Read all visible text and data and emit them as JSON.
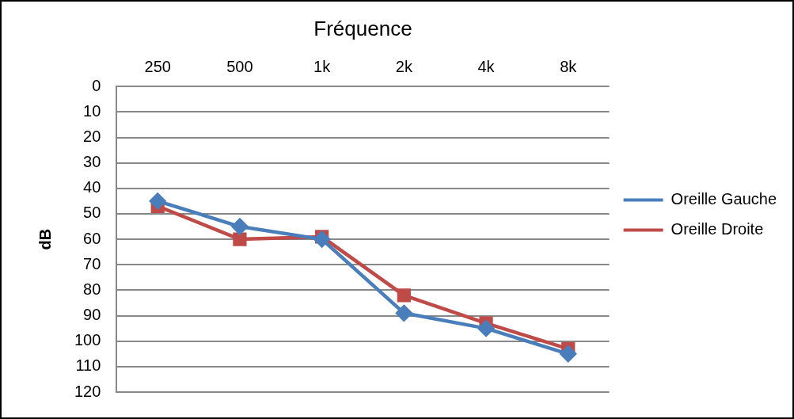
{
  "chart_data": {
    "type": "line",
    "xlabel": "Fréquence",
    "ylabel": "dB",
    "categories": [
      "250",
      "500",
      "1k",
      "2k",
      "4k",
      "8k"
    ],
    "series": [
      {
        "name": "Oreille Gauche",
        "color": "#4a7ebb",
        "marker": "diamond",
        "values": [
          45,
          55,
          60,
          89,
          95,
          105
        ]
      },
      {
        "name": "Oreille Droite",
        "color": "#be4b48",
        "marker": "square",
        "values": [
          47,
          60,
          59,
          82,
          93,
          103
        ]
      }
    ],
    "ylim": [
      120,
      0
    ],
    "yticks": [
      0,
      10,
      20,
      30,
      40,
      50,
      60,
      70,
      80,
      90,
      100,
      110,
      120
    ],
    "grid": "y",
    "legend": "right",
    "line_style": "solid"
  }
}
